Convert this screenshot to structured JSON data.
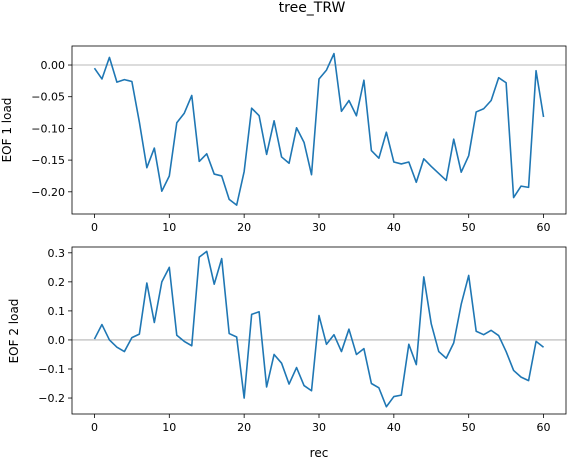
{
  "figure": {
    "title": "tree_TRW"
  },
  "colors": {
    "line": "#1f77b4",
    "zero_line": "#a0a0a0",
    "axes": "#000000"
  },
  "chart_data": [
    {
      "type": "line",
      "title": "",
      "xlabel": "",
      "ylabel": "EOF 1 load",
      "xlim": [
        -3,
        63
      ],
      "ylim": [
        -0.235,
        0.03
      ],
      "xticks": [
        0,
        10,
        20,
        30,
        40,
        50,
        60
      ],
      "yticks": [
        0.0,
        -0.05,
        -0.1,
        -0.15,
        -0.2
      ],
      "ytick_labels": [
        "0.00",
        "−0.05",
        "−0.10",
        "−0.15",
        "−0.20"
      ],
      "reference_line": 0,
      "grid": false,
      "series": [
        {
          "x": [
            0,
            1,
            2,
            3,
            4,
            5,
            6,
            7,
            8,
            9,
            10,
            11,
            12,
            13,
            14,
            15,
            16,
            17,
            18,
            19,
            20,
            21,
            22,
            23,
            24,
            25,
            26,
            27,
            28,
            29,
            30,
            31,
            32,
            33,
            34,
            35,
            36,
            37,
            38,
            39,
            40,
            41,
            42,
            43,
            44,
            45,
            46,
            47,
            48,
            49,
            50,
            51,
            52,
            53,
            54,
            55,
            56,
            57,
            58,
            59,
            60
          ],
          "y": [
            -0.005,
            -0.022,
            0.012,
            -0.027,
            -0.023,
            -0.026,
            -0.09,
            -0.162,
            -0.131,
            -0.199,
            -0.175,
            -0.091,
            -0.076,
            -0.048,
            -0.152,
            -0.14,
            -0.172,
            -0.175,
            -0.212,
            -0.221,
            -0.168,
            -0.068,
            -0.08,
            -0.141,
            -0.088,
            -0.145,
            -0.155,
            -0.099,
            -0.122,
            -0.173,
            -0.022,
            -0.008,
            0.018,
            -0.073,
            -0.056,
            -0.08,
            -0.024,
            -0.135,
            -0.147,
            -0.106,
            -0.153,
            -0.156,
            -0.153,
            -0.185,
            -0.148,
            -0.16,
            -0.171,
            -0.182,
            -0.117,
            -0.169,
            -0.143,
            -0.074,
            -0.069,
            -0.056,
            -0.02,
            -0.028,
            -0.209,
            -0.191,
            -0.193,
            -0.009,
            -0.082
          ]
        }
      ]
    },
    {
      "type": "line",
      "title": "",
      "xlabel": "rec",
      "ylabel": "EOF 2 load",
      "xlim": [
        -3,
        63
      ],
      "ylim": [
        -0.255,
        0.32
      ],
      "xticks": [
        0,
        10,
        20,
        30,
        40,
        50,
        60
      ],
      "yticks": [
        0.3,
        0.2,
        0.1,
        0.0,
        -0.1,
        -0.2
      ],
      "ytick_labels": [
        "0.3",
        "0.2",
        "0.1",
        "0.0",
        "−0.1",
        "−0.2"
      ],
      "reference_line": 0,
      "grid": false,
      "series": [
        {
          "x": [
            0,
            1,
            2,
            3,
            4,
            5,
            6,
            7,
            8,
            9,
            10,
            11,
            12,
            13,
            14,
            15,
            16,
            17,
            18,
            19,
            20,
            21,
            22,
            23,
            24,
            25,
            26,
            27,
            28,
            29,
            30,
            31,
            32,
            33,
            34,
            35,
            36,
            37,
            38,
            39,
            40,
            41,
            42,
            43,
            44,
            45,
            46,
            47,
            48,
            49,
            50,
            51,
            52,
            53,
            54,
            55,
            56,
            57,
            58,
            59,
            60
          ],
          "y": [
            0.003,
            0.053,
            0.0,
            -0.025,
            -0.04,
            0.008,
            0.02,
            0.196,
            0.06,
            0.2,
            0.25,
            0.016,
            -0.005,
            -0.02,
            0.285,
            0.305,
            0.192,
            0.28,
            0.022,
            0.01,
            -0.2,
            0.088,
            0.097,
            -0.162,
            -0.05,
            -0.08,
            -0.152,
            -0.095,
            -0.157,
            -0.175,
            0.084,
            -0.015,
            0.018,
            -0.04,
            0.037,
            -0.05,
            -0.03,
            -0.15,
            -0.165,
            -0.23,
            -0.195,
            -0.19,
            -0.015,
            -0.085,
            0.217,
            0.055,
            -0.04,
            -0.063,
            -0.01,
            0.123,
            0.222,
            0.03,
            0.018,
            0.033,
            0.015,
            -0.04,
            -0.105,
            -0.128,
            -0.14,
            -0.005,
            -0.025
          ]
        }
      ]
    }
  ]
}
